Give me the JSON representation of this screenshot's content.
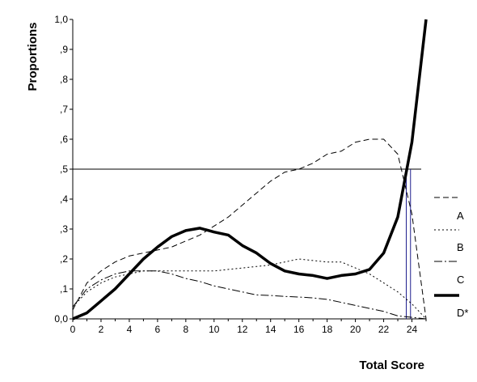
{
  "chart_data": {
    "type": "line",
    "title": "",
    "xlabel": "Total Score",
    "ylabel": "Proportions",
    "xlim": [
      0,
      25
    ],
    "ylim": [
      0,
      1
    ],
    "x_ticks": [
      0,
      2,
      4,
      6,
      8,
      10,
      12,
      14,
      16,
      18,
      20,
      22,
      24
    ],
    "y_ticks": [
      0,
      0.1,
      0.2,
      0.3,
      0.4,
      0.5,
      0.6,
      0.7,
      0.8,
      0.9,
      1.0
    ],
    "y_tick_labels": [
      "0,0",
      ",1",
      ",2",
      ",3",
      ",4",
      ",5",
      ",6",
      ",7",
      ",8",
      ",9",
      "1,0"
    ],
    "grid": false,
    "legend_position": "right",
    "reference_lines": {
      "horizontal_y": 0.5,
      "vertical_x": [
        23.6,
        23.9
      ]
    },
    "series": [
      {
        "name": "A",
        "style": "dash",
        "x": [
          0,
          1,
          2,
          3,
          4,
          5,
          6,
          7,
          8,
          9,
          10,
          11,
          12,
          13,
          14,
          15,
          16,
          17,
          18,
          19,
          20,
          21,
          22,
          23,
          24,
          25
        ],
        "values": [
          0.03,
          0.12,
          0.16,
          0.19,
          0.21,
          0.22,
          0.23,
          0.24,
          0.26,
          0.28,
          0.31,
          0.34,
          0.38,
          0.42,
          0.46,
          0.49,
          0.5,
          0.52,
          0.55,
          0.56,
          0.59,
          0.6,
          0.6,
          0.55,
          0.35,
          0.0
        ]
      },
      {
        "name": "B",
        "style": "dot",
        "x": [
          0,
          1,
          2,
          3,
          4,
          5,
          6,
          7,
          8,
          9,
          10,
          11,
          12,
          13,
          14,
          15,
          16,
          17,
          18,
          19,
          20,
          21,
          22,
          23,
          24,
          25
        ],
        "values": [
          0.04,
          0.09,
          0.12,
          0.14,
          0.15,
          0.16,
          0.16,
          0.16,
          0.16,
          0.16,
          0.16,
          0.165,
          0.17,
          0.175,
          0.18,
          0.19,
          0.2,
          0.195,
          0.19,
          0.19,
          0.17,
          0.15,
          0.12,
          0.09,
          0.05,
          0.0
        ]
      },
      {
        "name": "C",
        "style": "dashdot",
        "x": [
          0,
          1,
          2,
          3,
          4,
          5,
          6,
          7,
          8,
          9,
          10,
          11,
          12,
          13,
          14,
          15,
          16,
          17,
          18,
          19,
          20,
          21,
          22,
          23,
          24,
          25
        ],
        "values": [
          0.04,
          0.1,
          0.13,
          0.15,
          0.16,
          0.16,
          0.16,
          0.15,
          0.135,
          0.125,
          0.11,
          0.1,
          0.09,
          0.08,
          0.078,
          0.075,
          0.073,
          0.07,
          0.065,
          0.055,
          0.045,
          0.035,
          0.025,
          0.01,
          0.005,
          0.0
        ]
      },
      {
        "name": "D*",
        "style": "thick",
        "x": [
          0,
          1,
          2,
          3,
          4,
          5,
          6,
          7,
          8,
          9,
          10,
          11,
          12,
          13,
          14,
          15,
          16,
          17,
          18,
          19,
          20,
          21,
          22,
          23,
          24,
          25
        ],
        "values": [
          0.0,
          0.02,
          0.06,
          0.1,
          0.15,
          0.2,
          0.24,
          0.275,
          0.295,
          0.303,
          0.29,
          0.28,
          0.245,
          0.22,
          0.185,
          0.16,
          0.15,
          0.145,
          0.135,
          0.145,
          0.15,
          0.165,
          0.22,
          0.34,
          0.59,
          1.0
        ]
      }
    ]
  }
}
